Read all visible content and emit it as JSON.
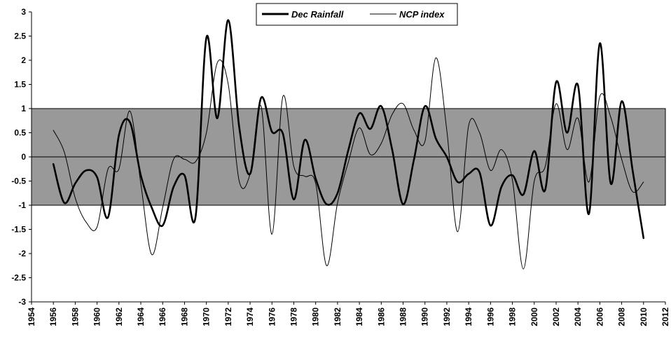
{
  "chart_data": {
    "type": "line",
    "xlim": [
      1954,
      2012
    ],
    "ylim": [
      -3,
      3
    ],
    "x_ticks": [
      "1954",
      "1956",
      "1958",
      "1960",
      "1962",
      "1964",
      "1966",
      "1968",
      "1970",
      "1972",
      "1974",
      "1976",
      "1978",
      "1980",
      "1982",
      "1984",
      "1986",
      "1988",
      "1990",
      "1992",
      "1994",
      "1996",
      "1998",
      "2000",
      "2002",
      "2004",
      "2006",
      "2008",
      "2010",
      "2012"
    ],
    "y_ticks": [
      "3",
      "2.5",
      "2",
      "1.5",
      "1",
      "0.5",
      "0",
      "-0.5",
      "-1",
      "-1.5",
      "-2",
      "-2.5",
      "-3"
    ],
    "band": [
      -1,
      1
    ],
    "band_color": "#999999",
    "grid": false,
    "legend_position": "top-center",
    "series": [
      {
        "name": "Dec Rainfall",
        "style": "thick",
        "x": [
          1956,
          1957,
          1958,
          1959,
          1960,
          1961,
          1962,
          1963,
          1964,
          1965,
          1966,
          1967,
          1968,
          1969,
          1970,
          1971,
          1972,
          1973,
          1974,
          1975,
          1976,
          1977,
          1978,
          1979,
          1980,
          1981,
          1982,
          1983,
          1984,
          1985,
          1986,
          1987,
          1988,
          1989,
          1990,
          1991,
          1992,
          1993,
          1994,
          1995,
          1996,
          1997,
          1998,
          1999,
          2000,
          2001,
          2002,
          2003,
          2004,
          2005,
          2006,
          2007,
          2008,
          2009,
          2010
        ],
        "values": [
          -0.15,
          -0.95,
          -0.55,
          -0.28,
          -0.42,
          -1.25,
          0.45,
          0.72,
          -0.38,
          -1.05,
          -1.42,
          -0.62,
          -0.38,
          -1.25,
          2.47,
          0.8,
          2.83,
          0.62,
          -0.35,
          1.22,
          0.52,
          0.48,
          -0.88,
          0.35,
          -0.45,
          -0.98,
          -0.75,
          0.15,
          0.9,
          0.58,
          1.05,
          0.15,
          -0.98,
          -0.05,
          1.05,
          0.38,
          0.0,
          -0.52,
          -0.35,
          -0.32,
          -1.42,
          -0.62,
          -0.38,
          -0.78,
          0.12,
          -0.68,
          1.55,
          0.5,
          1.48,
          -1.18,
          2.35,
          -0.55,
          1.15,
          -0.28,
          -1.68
        ]
      },
      {
        "name": "NCP index",
        "style": "thin",
        "x": [
          1956,
          1957,
          1958,
          1959,
          1960,
          1961,
          1962,
          1963,
          1964,
          1965,
          1966,
          1967,
          1968,
          1969,
          1970,
          1971,
          1972,
          1973,
          1974,
          1975,
          1976,
          1977,
          1978,
          1979,
          1980,
          1981,
          1982,
          1983,
          1984,
          1985,
          1986,
          1987,
          1988,
          1989,
          1990,
          1991,
          1992,
          1993,
          1994,
          1995,
          1996,
          1997,
          1998,
          1999,
          2000,
          2001,
          2002,
          2003,
          2004,
          2005,
          2006,
          2007,
          2008,
          2009,
          2010
        ],
        "values": [
          0.55,
          0.1,
          -0.85,
          -1.35,
          -1.45,
          -0.25,
          -0.25,
          0.95,
          -0.55,
          -2.02,
          -1.05,
          -0.05,
          -0.05,
          -0.1,
          0.5,
          1.95,
          1.5,
          -0.5,
          -0.35,
          1.05,
          -1.6,
          1.25,
          -0.2,
          -0.4,
          -0.55,
          -2.25,
          -0.95,
          -0.1,
          0.6,
          0.05,
          0.28,
          0.88,
          1.1,
          0.55,
          0.32,
          2.05,
          0.55,
          -1.55,
          0.65,
          0.5,
          -0.28,
          0.15,
          -0.48,
          -2.32,
          -0.5,
          -0.2,
          1.1,
          0.15,
          0.8,
          -0.52,
          1.25,
          0.82,
          -0.05,
          -0.72,
          -0.52
        ]
      }
    ]
  }
}
